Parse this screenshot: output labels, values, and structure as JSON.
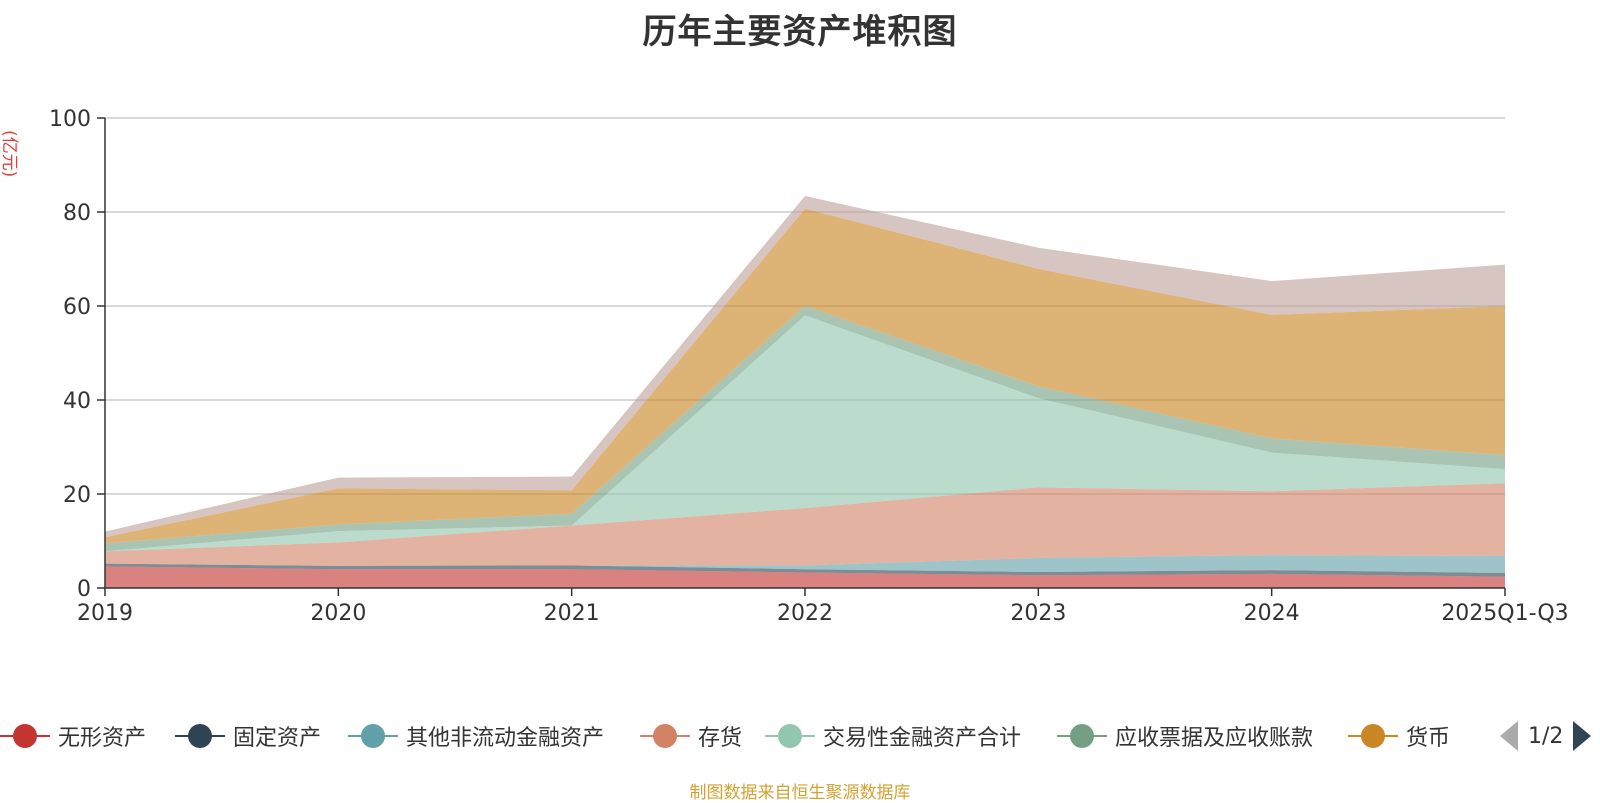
{
  "chart_data": {
    "type": "area",
    "stacked": true,
    "title": "历年主要资产堆积图",
    "unit": "(亿元)",
    "categories": [
      "2019",
      "2020",
      "2021",
      "2022",
      "2023",
      "2024",
      "2025Q1-Q3"
    ],
    "ylim": [
      0,
      100
    ],
    "yticks": [
      "0",
      "20",
      "40",
      "60",
      "80",
      "100"
    ],
    "grid": true,
    "legend_position": "bottom",
    "series": [
      {
        "name": "无形资产",
        "color": "#c23531",
        "values": [
          4.6,
          4.0,
          4.0,
          3.3,
          2.7,
          3.0,
          2.4
        ]
      },
      {
        "name": "固定资产",
        "color": "#2f4554",
        "values": [
          0.6,
          0.7,
          0.8,
          0.7,
          0.7,
          0.8,
          0.8
        ]
      },
      {
        "name": "其他非流动金融资产",
        "color": "#61a0a8",
        "values": [
          0.0,
          0.0,
          0.0,
          0.8,
          3.0,
          3.2,
          3.6
        ]
      },
      {
        "name": "存货",
        "color": "#d48265",
        "values": [
          2.6,
          5.0,
          8.5,
          12.2,
          15.0,
          13.6,
          15.5
        ]
      },
      {
        "name": "交易性金融资产合计",
        "color": "#91c7ae",
        "values": [
          0.0,
          2.4,
          0.0,
          41.0,
          19.0,
          8.2,
          3.0
        ]
      },
      {
        "name": "应收票据及应收账款",
        "color": "#749f83",
        "values": [
          1.7,
          1.4,
          2.5,
          2.0,
          2.5,
          3.0,
          3.0
        ]
      },
      {
        "name": "货币",
        "color": "#ca8622",
        "values": [
          1.3,
          7.7,
          5.0,
          20.7,
          25.0,
          26.3,
          31.7
        ]
      },
      {
        "name": "",
        "color": "#bda29a",
        "values": [
          1.2,
          2.3,
          2.9,
          2.7,
          4.5,
          7.2,
          8.8
        ]
      }
    ]
  },
  "legend": {
    "page_indicator": "1/2"
  },
  "source_text": "制图数据来自恒生聚源数据库"
}
